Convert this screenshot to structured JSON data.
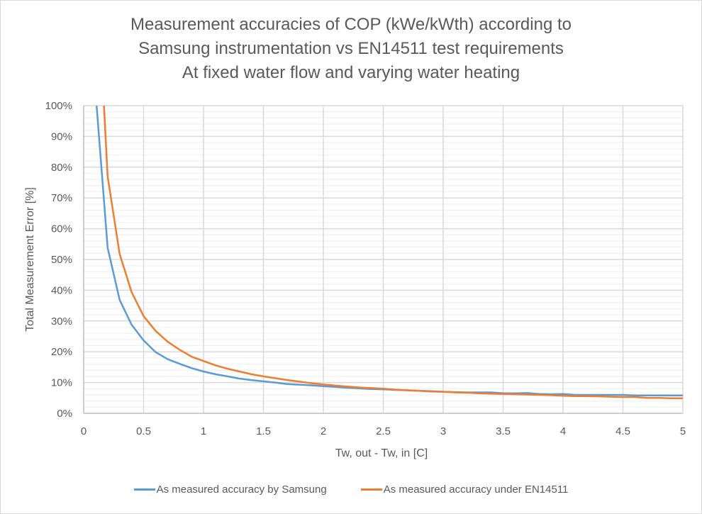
{
  "chart_data": {
    "type": "line",
    "title_lines": [
      "Measurement accuracies of COP (kWe/kWth) according to",
      "Samsung instrumentation vs EN14511 test requirements",
      "At fixed water flow and varying water heating"
    ],
    "xlabel": "Tw, out - Tw, in [C]",
    "ylabel": "Total Measurement Error [%]",
    "xlim": [
      0,
      5
    ],
    "ylim": [
      0,
      100
    ],
    "x_ticks": [
      "0",
      "0.5",
      "1",
      "1.5",
      "2",
      "2.5",
      "3",
      "3.5",
      "4",
      "4.5",
      "5"
    ],
    "x_tick_values": [
      0,
      0.5,
      1,
      1.5,
      2,
      2.5,
      3,
      3.5,
      4,
      4.5,
      5
    ],
    "y_ticks": [
      "0%",
      "10%",
      "20%",
      "30%",
      "40%",
      "50%",
      "60%",
      "70%",
      "80%",
      "90%",
      "100%"
    ],
    "y_tick_values": [
      0,
      10,
      20,
      30,
      40,
      50,
      60,
      70,
      80,
      90,
      100
    ],
    "y_minor_step": 2,
    "grid": true,
    "legend_position": "bottom",
    "x": [
      0.1,
      0.2,
      0.3,
      0.4,
      0.5,
      0.6,
      0.7,
      0.8,
      0.9,
      1.0,
      1.1,
      1.2,
      1.3,
      1.4,
      1.5,
      1.6,
      1.7,
      1.8,
      1.9,
      2.0,
      2.1,
      2.2,
      2.3,
      2.4,
      2.5,
      2.6,
      2.7,
      2.8,
      2.9,
      3.0,
      3.1,
      3.2,
      3.3,
      3.4,
      3.5,
      3.6,
      3.7,
      3.8,
      3.9,
      4.0,
      4.1,
      4.2,
      4.3,
      4.4,
      4.5,
      4.6,
      4.7,
      4.8,
      4.9,
      5.0
    ],
    "series": [
      {
        "name": "As measured accuracy by Samsung",
        "color": "#5b9bd5",
        "values": [
          104,
          53.8,
          36.9,
          28.8,
          23.7,
          19.9,
          17.6,
          16.1,
          14.7,
          13.6,
          12.7,
          12.0,
          11.3,
          10.8,
          10.4,
          10.0,
          9.5,
          9.3,
          9.1,
          8.8,
          8.6,
          8.3,
          8.1,
          7.9,
          7.8,
          7.6,
          7.5,
          7.3,
          7.2,
          7.0,
          6.9,
          6.8,
          6.8,
          6.8,
          6.5,
          6.5,
          6.6,
          6.3,
          6.2,
          6.3,
          6.0,
          6.0,
          6.0,
          6.0,
          6.0,
          5.8,
          5.8,
          5.8,
          5.8,
          5.8
        ]
      },
      {
        "name": "As measured accuracy under EN14511",
        "color": "#ed7d31",
        "values": [
          152,
          77,
          51.8,
          39.4,
          31.6,
          26.8,
          23.3,
          20.7,
          18.4,
          17.0,
          15.6,
          14.5,
          13.6,
          12.7,
          12.0,
          11.4,
          10.8,
          10.3,
          9.8,
          9.4,
          9.0,
          8.7,
          8.4,
          8.2,
          8.0,
          7.7,
          7.5,
          7.3,
          7.1,
          7.0,
          6.8,
          6.7,
          6.5,
          6.4,
          6.3,
          6.2,
          6.1,
          6.0,
          5.9,
          5.7,
          5.6,
          5.6,
          5.5,
          5.4,
          5.3,
          5.3,
          5.0,
          5.0,
          4.9,
          4.9
        ]
      }
    ]
  }
}
